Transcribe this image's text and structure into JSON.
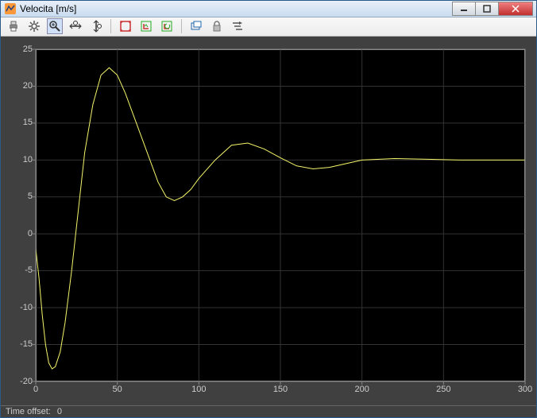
{
  "window": {
    "title": "Velocita [m/s]",
    "controls": {
      "min": "—",
      "max": "□",
      "close": "✕"
    }
  },
  "toolbar": {
    "items": [
      {
        "name": "print-icon",
        "glyph": "print"
      },
      {
        "name": "settings-icon",
        "glyph": "gear"
      },
      {
        "name": "zoom-icon",
        "glyph": "zoom",
        "active": true
      },
      {
        "name": "zoom-x-icon",
        "glyph": "zoomx"
      },
      {
        "name": "zoom-y-icon",
        "glyph": "zoomy"
      },
      {
        "name": "sep"
      },
      {
        "name": "autoscale-icon",
        "glyph": "autoscale"
      },
      {
        "name": "save-axes-icon",
        "glyph": "saveaxes"
      },
      {
        "name": "restore-axes-icon",
        "glyph": "restoreaxes"
      },
      {
        "name": "sep"
      },
      {
        "name": "float-icon",
        "glyph": "float"
      },
      {
        "name": "lock-icon",
        "glyph": "lock"
      },
      {
        "name": "signal-icon",
        "glyph": "signal"
      }
    ]
  },
  "chart": {
    "type": "line",
    "background_color": "#000000",
    "panel_color": "#404040",
    "grid_color": "#333333",
    "axes_color": "#888888",
    "tick_label_color": "#cccccc",
    "line_color": "#f5f56a",
    "line_width": 1,
    "xlim": [
      0,
      300
    ],
    "ylim": [
      -20,
      25
    ],
    "xticks": [
      0,
      50,
      100,
      150,
      200,
      250,
      300
    ],
    "yticks": [
      -20,
      -15,
      -10,
      -5,
      0,
      5,
      10,
      15,
      20,
      25
    ],
    "tick_fontsize": 11,
    "x": [
      0,
      2,
      4,
      6,
      8,
      10,
      12,
      15,
      18,
      22,
      26,
      30,
      35,
      40,
      45,
      50,
      55,
      60,
      65,
      70,
      75,
      80,
      85,
      90,
      95,
      100,
      110,
      120,
      130,
      140,
      150,
      160,
      170,
      180,
      190,
      200,
      220,
      240,
      260,
      280,
      300
    ],
    "y": [
      -2,
      -6,
      -11,
      -15,
      -17.5,
      -18.3,
      -18,
      -16,
      -12,
      -5,
      3,
      11,
      17.5,
      21.5,
      22.5,
      21.5,
      19,
      16,
      13,
      10,
      7,
      5,
      4.5,
      5,
      6,
      7.5,
      10,
      12,
      12.3,
      11.5,
      10.3,
      9.2,
      8.8,
      9,
      9.5,
      10,
      10.2,
      10.1,
      10,
      10,
      10
    ]
  },
  "status": {
    "label": "Time offset:",
    "value": "0"
  }
}
